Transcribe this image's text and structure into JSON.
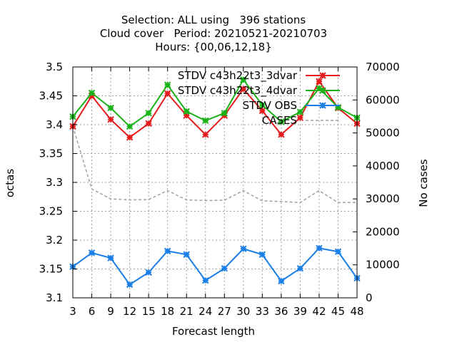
{
  "chart_data": {
    "type": "line",
    "title": [
      "Selection: ALL using   396 stations",
      "Cloud cover   Period: 20210521-20210703",
      "Hours: {00,06,12,18}"
    ],
    "xlabel": "Forecast length",
    "ylabel": "octas",
    "y2label": "No cases",
    "x": [
      3,
      6,
      9,
      12,
      15,
      18,
      21,
      24,
      27,
      30,
      33,
      36,
      39,
      42,
      45,
      48
    ],
    "xlim": [
      3,
      48
    ],
    "ylim": [
      3.1,
      3.5
    ],
    "y2lim": [
      0,
      70000
    ],
    "yticks": [
      "3.1",
      "3.15",
      "3.2",
      "3.25",
      "3.3",
      "3.35",
      "3.4",
      "3.45",
      "3.5"
    ],
    "y2ticks": [
      "0",
      "10000",
      "20000",
      "30000",
      "40000",
      "50000",
      "60000",
      "70000"
    ],
    "grid": true,
    "legend_position": "top-right",
    "series": [
      {
        "name": "STDV c43h22t3_3dvar",
        "color": "#e41a1c",
        "axis": "left",
        "values": [
          3.397,
          3.45,
          3.409,
          3.378,
          3.402,
          3.454,
          3.416,
          3.383,
          3.416,
          3.462,
          3.424,
          3.383,
          3.412,
          3.475,
          3.429,
          3.402
        ]
      },
      {
        "name": "STDV c43h22t3_4dvar",
        "color": "#19b319",
        "axis": "left",
        "values": [
          3.414,
          3.455,
          3.429,
          3.397,
          3.42,
          3.469,
          3.423,
          3.407,
          3.42,
          3.478,
          3.434,
          3.405,
          3.422,
          3.463,
          3.43,
          3.412
        ]
      },
      {
        "name": "STDV OBS",
        "color": "#1a7ee6",
        "axis": "left",
        "values": [
          3.154,
          3.178,
          3.169,
          3.123,
          3.144,
          3.181,
          3.175,
          3.13,
          3.151,
          3.185,
          3.175,
          3.129,
          3.151,
          3.186,
          3.18,
          3.134
        ]
      },
      {
        "name": "CASES",
        "color": "#a0a0a0",
        "axis": "right",
        "dashed": true,
        "values": [
          52000,
          33000,
          30000,
          29700,
          29800,
          32500,
          29700,
          29500,
          29600,
          32500,
          29400,
          29200,
          28900,
          32500,
          28900,
          28900
        ]
      }
    ]
  }
}
